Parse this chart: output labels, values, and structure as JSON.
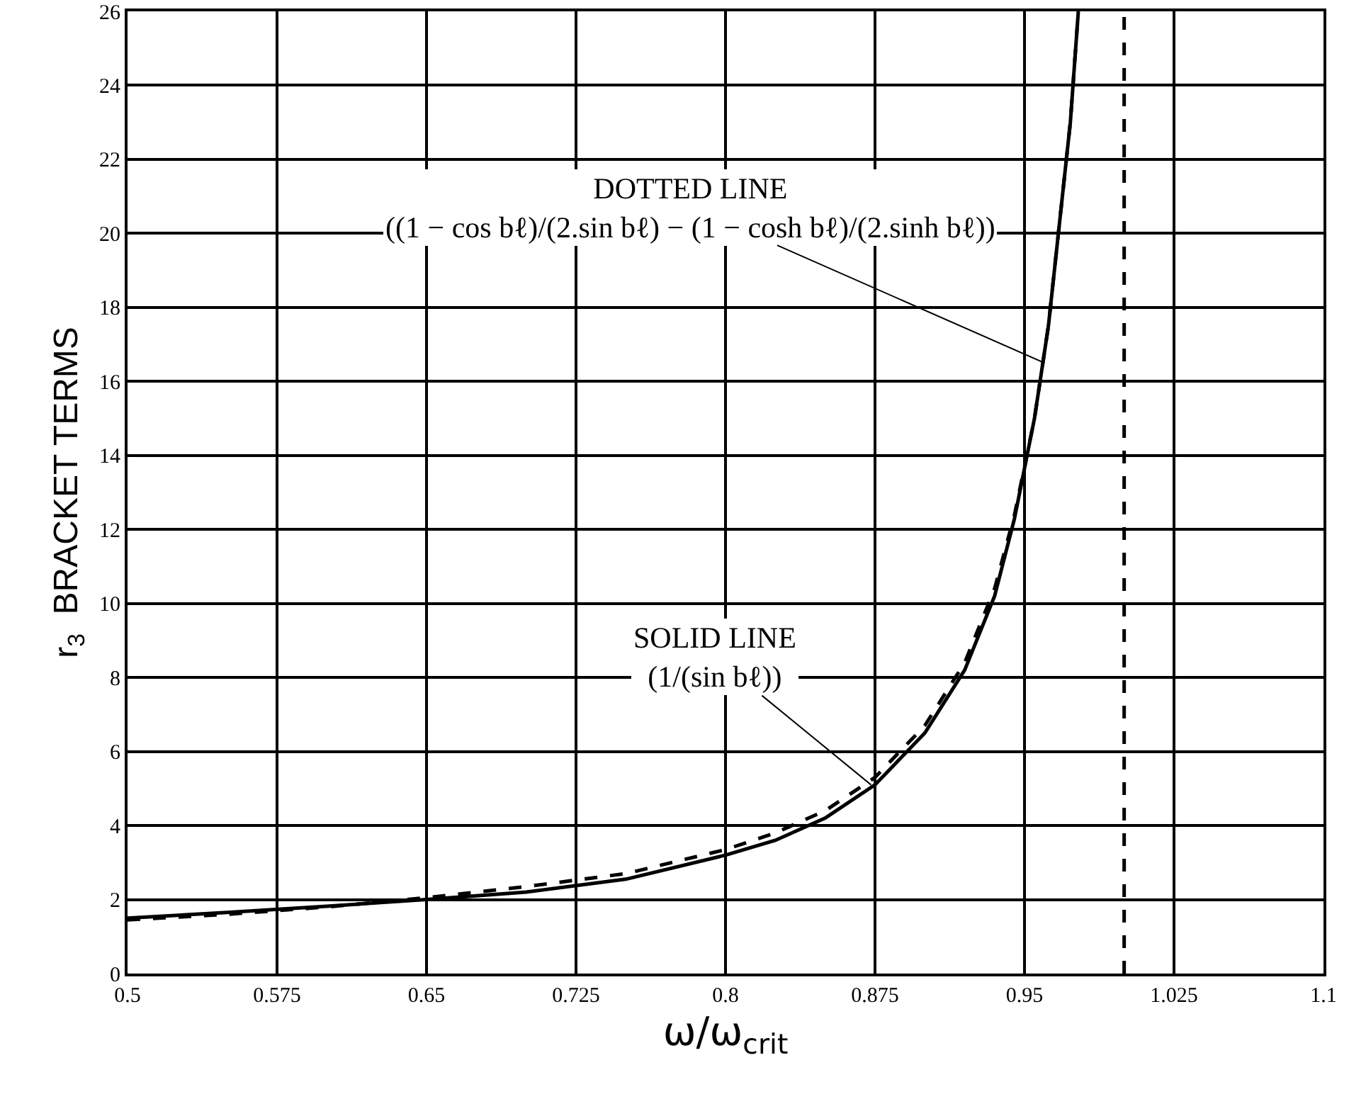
{
  "chart_data": {
    "type": "line",
    "xlabel": "ω/ω$_{crit}$",
    "ylabel": "r$_{3}$  BRACKET TERMS",
    "xlim": [
      0.5,
      1.1
    ],
    "xticks": [
      0.5,
      0.575,
      0.65,
      0.725,
      0.8,
      0.875,
      0.95,
      1.025,
      1.1
    ],
    "ylim": [
      0,
      26
    ],
    "yticks": [
      0,
      2,
      4,
      6,
      8,
      10,
      12,
      14,
      16,
      18,
      20,
      22,
      24,
      26
    ],
    "grid": true,
    "marker": "none",
    "series": [
      {
        "color": "#000000",
        "line_style": "solid",
        "x": [
          0.5,
          0.55,
          0.6,
          0.65,
          0.7,
          0.75,
          0.8,
          0.825,
          0.85,
          0.875,
          0.9,
          0.92,
          0.935,
          0.945,
          0.955,
          0.962,
          0.968,
          0.973,
          0.977
        ],
        "values": [
          1.5,
          1.65,
          1.82,
          2.0,
          2.2,
          2.55,
          3.2,
          3.6,
          4.2,
          5.1,
          6.5,
          8.2,
          10.2,
          12.3,
          15.0,
          17.5,
          20.5,
          23,
          26
        ]
      },
      {
        "color": "#000000",
        "line_style": "dashed",
        "x": [
          0.5,
          0.55,
          0.6,
          0.65,
          0.7,
          0.75,
          0.8,
          0.825,
          0.85,
          0.875,
          0.9,
          0.92,
          0.935,
          0.945,
          0.955,
          0.962,
          0.968,
          0.973,
          0.977,
          0.99,
          1.0,
          1.0
        ],
        "values": [
          1.45,
          1.6,
          1.8,
          2.05,
          2.35,
          2.7,
          3.35,
          3.8,
          4.4,
          5.3,
          6.7,
          8.4,
          10.4,
          12.4,
          15,
          17.5,
          20.5,
          23,
          26,
          null,
          0,
          26
        ]
      }
    ],
    "annotations": [
      {
        "text": "DOTTED LINE\n((1 − cos bℓ)/(2.sin bℓ) − (1 − cosh bℓ)/(2.sinh bℓ))",
        "x": 0.96,
        "y": 16.5
      },
      {
        "text": "SOLID LINE\n(1/(sin bℓ))",
        "x": 0.873,
        "y": 5.1
      }
    ]
  }
}
